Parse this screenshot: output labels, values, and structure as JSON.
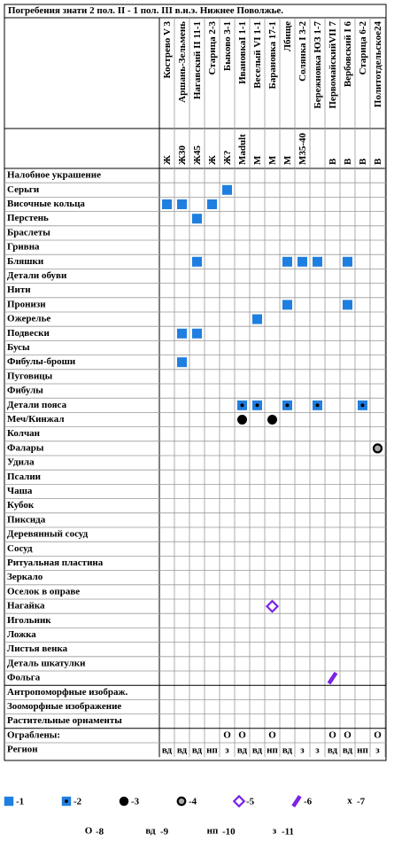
{
  "header": {
    "title": "Погребения знати 2 пол. II - 1 пол. III в.н.э. Нижнее Поволжье."
  },
  "table": {
    "columns": [
      {
        "name": "Кострево V 3",
        "sex": "Ж",
        "robbed": null,
        "region": "вд"
      },
      {
        "name": "Аршань-Зельмень",
        "sex": "Ж30",
        "robbed": null,
        "region": "вд"
      },
      {
        "name": "Нагавский II 11-1",
        "sex": "Ж45",
        "robbed": null,
        "region": "вд"
      },
      {
        "name": "Старица 2-3",
        "sex": "Ж",
        "robbed": null,
        "region": "нп"
      },
      {
        "name": "Быково 3-1",
        "sex": "Ж?",
        "robbed": "О",
        "region": "з"
      },
      {
        "name": "ИвановкаI 1-1",
        "sex": "Madult",
        "robbed": "О",
        "region": "вд"
      },
      {
        "name": "Веселый VI 1-1",
        "sex": "М",
        "robbed": null,
        "region": "вд"
      },
      {
        "name": "Барановка 17-1",
        "sex": "М",
        "robbed": "О",
        "region": "нп"
      },
      {
        "name": "Лбище",
        "sex": "М",
        "robbed": null,
        "region": "вд"
      },
      {
        "name": "Солянка I 3-2",
        "sex": "М35-40",
        "robbed": null,
        "region": "з"
      },
      {
        "name": "Бережновка ЮЗ 1-7",
        "sex": null,
        "robbed": null,
        "region": "з"
      },
      {
        "name": "ПервомайскийVII 7",
        "sex": "В",
        "robbed": "О",
        "region": "вд"
      },
      {
        "name": "Вербовский I 6",
        "sex": "В",
        "robbed": "О",
        "region": "вд"
      },
      {
        "name": "Старица 6-2",
        "sex": "В",
        "robbed": null,
        "region": "нп"
      },
      {
        "name": "Политотдельское24",
        "sex": "В",
        "robbed": "О",
        "region": "з"
      }
    ],
    "rows": [
      {
        "label": "Налобное украшение",
        "marks": []
      },
      {
        "label": "Серьги",
        "marks": [
          [
            4,
            1
          ]
        ]
      },
      {
        "label": "Височные кольца",
        "marks": [
          [
            0,
            1
          ],
          [
            1,
            1
          ],
          [
            3,
            1
          ]
        ]
      },
      {
        "label": "Перстень",
        "marks": [
          [
            2,
            1
          ]
        ]
      },
      {
        "label": "Браслеты",
        "marks": []
      },
      {
        "label": "Гривна",
        "marks": []
      },
      {
        "label": "Бляшки",
        "marks": [
          [
            2,
            1
          ],
          [
            8,
            1
          ],
          [
            9,
            1
          ],
          [
            10,
            1
          ],
          [
            12,
            1
          ]
        ]
      },
      {
        "label": "Детали обуви",
        "marks": []
      },
      {
        "label": "Нити",
        "marks": []
      },
      {
        "label": "Пронизи",
        "marks": [
          [
            8,
            1
          ],
          [
            12,
            1
          ]
        ]
      },
      {
        "label": "Ожерелье",
        "marks": [
          [
            6,
            1
          ]
        ]
      },
      {
        "label": "Подвески",
        "marks": [
          [
            1,
            1
          ],
          [
            2,
            1
          ]
        ]
      },
      {
        "label": "Бусы",
        "marks": []
      },
      {
        "label": "Фибулы-броши",
        "marks": [
          [
            1,
            1
          ]
        ]
      },
      {
        "label": "Пуговицы",
        "marks": []
      },
      {
        "label": "Фибулы",
        "marks": []
      },
      {
        "label": "Детали пояса",
        "marks": [
          [
            5,
            2
          ],
          [
            6,
            2
          ],
          [
            8,
            2
          ],
          [
            10,
            2
          ],
          [
            13,
            2
          ]
        ]
      },
      {
        "label": "Меч/Кинжал",
        "marks": [
          [
            5,
            3
          ],
          [
            7,
            3
          ]
        ]
      },
      {
        "label": "Колчан",
        "marks": []
      },
      {
        "label": "Фалары",
        "marks": [
          [
            14,
            4
          ]
        ]
      },
      {
        "label": "Удила",
        "marks": []
      },
      {
        "label": "Псалии",
        "marks": []
      },
      {
        "label": "Чаша",
        "marks": []
      },
      {
        "label": "Кубок",
        "marks": []
      },
      {
        "label": "Пиксида",
        "marks": []
      },
      {
        "label": "Деревянный сосуд",
        "marks": []
      },
      {
        "label": "Сосуд",
        "marks": []
      },
      {
        "label": "Ритуальная пластина",
        "marks": []
      },
      {
        "label": "Зеркало",
        "marks": []
      },
      {
        "label": "Оселок в оправе",
        "marks": []
      },
      {
        "label": "Нагайка",
        "marks": [
          [
            7,
            5
          ]
        ]
      },
      {
        "label": "Игольник",
        "marks": []
      },
      {
        "label": "Ложка",
        "marks": []
      },
      {
        "label": "Листья венка",
        "marks": []
      },
      {
        "label": "Деталь шкатулки",
        "marks": []
      },
      {
        "label": "Фольга",
        "marks": [
          [
            11,
            6
          ]
        ]
      },
      {
        "label": "Антропоморфные изображ.",
        "marks": []
      },
      {
        "label": "Зооморфные изображение",
        "marks": []
      },
      {
        "label": "Растительные орнаменты",
        "marks": []
      }
    ],
    "robbed_label": "Ограблены:",
    "region_label": "Регион"
  },
  "legend": {
    "items": [
      {
        "symbol": 1,
        "label": "-1"
      },
      {
        "symbol": 2,
        "label": "-2"
      },
      {
        "symbol": 3,
        "label": "-3"
      },
      {
        "symbol": 4,
        "label": "-4"
      },
      {
        "symbol": 5,
        "label": "-5"
      },
      {
        "symbol": 6,
        "label": "-6"
      },
      {
        "symbol": 7,
        "glyph": "x",
        "label": "-7"
      },
      {
        "glyph": "О",
        "label": "-8"
      },
      {
        "glyph": "вд",
        "label": "-9"
      },
      {
        "glyph": "нп",
        "label": "-10"
      },
      {
        "glyph": "з",
        "label": "-11"
      }
    ]
  }
}
